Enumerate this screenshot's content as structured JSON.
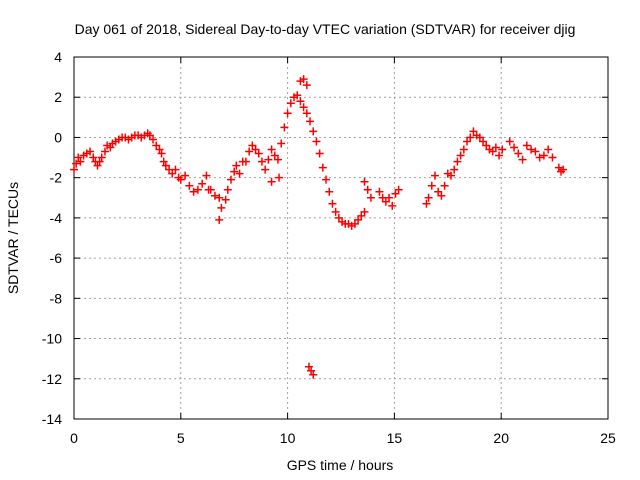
{
  "chart_data": {
    "type": "scatter",
    "title": "Day 061 of 2018, Sidereal Day-to-day VTEC variation (SDTVAR) for receiver djig",
    "xlabel": "GPS time / hours",
    "ylabel": "SDTVAR / TECUs",
    "xlim": [
      0,
      25
    ],
    "ylim": [
      -14,
      4
    ],
    "xticks": [
      0,
      5,
      10,
      15,
      20,
      25
    ],
    "yticks": [
      -14,
      -12,
      -10,
      -8,
      -6,
      -4,
      -2,
      0,
      2,
      4
    ],
    "grid": true,
    "marker": "+",
    "color": "#ff0000",
    "series": [
      {
        "name": "SDTVAR",
        "x": [
          0.0,
          0.1,
          0.2,
          0.3,
          0.45,
          0.6,
          0.75,
          0.9,
          1.0,
          1.1,
          1.2,
          1.3,
          1.45,
          1.55,
          1.7,
          1.8,
          1.95,
          2.1,
          2.25,
          2.4,
          2.55,
          2.7,
          2.85,
          3.0,
          3.15,
          3.3,
          3.45,
          3.55,
          3.7,
          3.85,
          4.0,
          4.1,
          4.2,
          4.3,
          4.45,
          4.6,
          4.75,
          4.9,
          5.0,
          5.2,
          5.4,
          5.6,
          5.8,
          6.0,
          6.2,
          6.4,
          6.6,
          6.8,
          6.9,
          7.1,
          7.2,
          7.35,
          7.5,
          7.6,
          7.75,
          7.9,
          8.05,
          8.2,
          8.35,
          8.5,
          8.65,
          8.8,
          8.95,
          9.1,
          9.25,
          9.4,
          9.55,
          9.7,
          9.85,
          10.0,
          10.15,
          10.3,
          10.45,
          10.6,
          10.75,
          10.9,
          11.05,
          11.2,
          11.35,
          11.5,
          11.65,
          11.8,
          11.95,
          12.1,
          12.25,
          12.4,
          12.55,
          12.7,
          12.85,
          13.0,
          13.15,
          13.3,
          13.45,
          13.6,
          14.3,
          14.45,
          14.6,
          14.75,
          14.9,
          15.05,
          15.2,
          16.5,
          16.6,
          16.75,
          16.9,
          17.05,
          17.2,
          17.35,
          17.5,
          17.65,
          17.8,
          17.95,
          18.1,
          18.25,
          18.4,
          18.55,
          18.7,
          18.85,
          19.0,
          19.15,
          19.3,
          19.45,
          19.6,
          19.75,
          19.9,
          20.05,
          20.4,
          20.6,
          20.8,
          21.0,
          21.2,
          21.4,
          21.6,
          21.8,
          22.0,
          22.2,
          22.4,
          22.7,
          22.8,
          22.9,
          6.8,
          6.3,
          10.6,
          10.75,
          10.9,
          11.0,
          11.1,
          11.2,
          13.6,
          13.75,
          13.9,
          9.25,
          9.6
        ],
        "y": [
          -1.6,
          -1.3,
          -1.0,
          -1.2,
          -0.9,
          -0.8,
          -0.7,
          -1.0,
          -1.2,
          -1.4,
          -1.2,
          -1.0,
          -0.7,
          -0.4,
          -0.5,
          -0.3,
          -0.2,
          -0.1,
          0.0,
          0.0,
          -0.1,
          0.0,
          0.1,
          0.1,
          0.0,
          0.1,
          0.2,
          0.1,
          -0.1,
          -0.4,
          -0.6,
          -0.8,
          -1.2,
          -1.4,
          -1.6,
          -1.8,
          -1.6,
          -2.0,
          -2.1,
          -1.9,
          -2.4,
          -2.7,
          -2.6,
          -2.3,
          -1.9,
          -2.6,
          -2.9,
          -3.0,
          -3.5,
          -3.1,
          -2.6,
          -2.1,
          -1.7,
          -1.4,
          -1.8,
          -1.2,
          -1.2,
          -0.7,
          -0.4,
          -0.6,
          -0.8,
          -1.2,
          -1.6,
          -1.1,
          -0.6,
          -0.9,
          -1.1,
          -0.3,
          0.5,
          1.2,
          1.7,
          2.0,
          2.1,
          1.8,
          1.5,
          1.2,
          0.8,
          0.3,
          -0.2,
          -0.8,
          -1.5,
          -2.1,
          -2.7,
          -3.3,
          -3.7,
          -4.0,
          -4.2,
          -4.3,
          -4.3,
          -4.4,
          -4.3,
          -4.1,
          -3.9,
          -3.7,
          -2.7,
          -3.0,
          -3.2,
          -3.0,
          -3.4,
          -2.8,
          -2.6,
          -3.3,
          -3.0,
          -2.4,
          -1.9,
          -2.7,
          -2.9,
          -2.4,
          -1.8,
          -1.9,
          -1.6,
          -1.2,
          -0.9,
          -0.6,
          -0.2,
          0.0,
          0.3,
          0.1,
          0.0,
          -0.2,
          -0.4,
          -0.6,
          -0.7,
          -0.5,
          -0.9,
          -0.6,
          -0.2,
          -0.5,
          -0.8,
          -1.1,
          -0.4,
          -0.6,
          -0.7,
          -1.0,
          -0.9,
          -0.6,
          -1.0,
          -1.5,
          -1.7,
          -1.6,
          -4.1,
          -2.6,
          2.8,
          2.9,
          2.6,
          -11.4,
          -11.6,
          -11.8,
          -2.2,
          -2.6,
          -3.0,
          -2.2,
          -2.0
        ]
      }
    ]
  }
}
